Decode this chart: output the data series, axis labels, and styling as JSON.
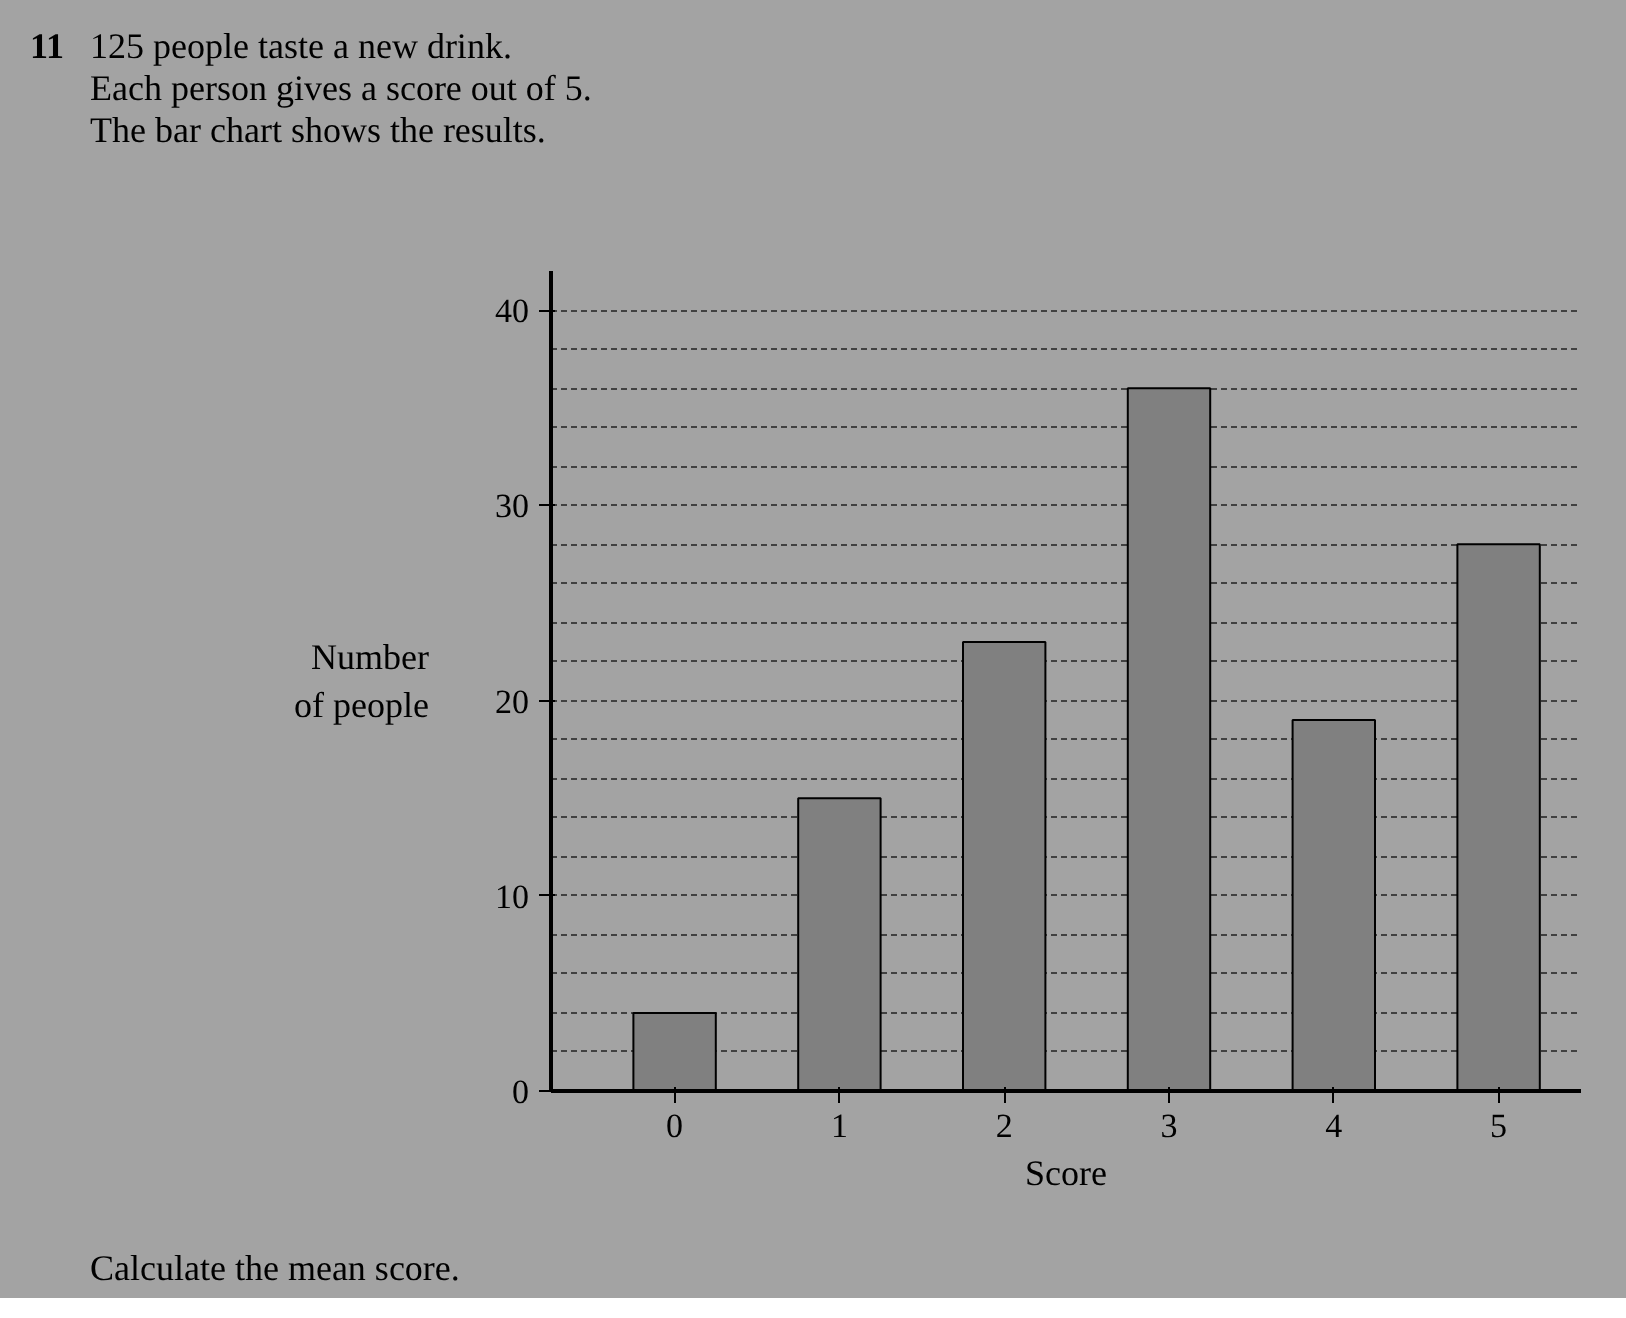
{
  "chart_data": {
    "type": "bar",
    "title": "125 people taste a new drink.",
    "subtitle": "Each person gives a score out of 5.\nThe bar chart shows the results.",
    "xlabel": "Score",
    "ylabel": "Number\nof people",
    "annotations": [
      "11",
      "Calculate the mean score."
    ],
    "categories": [
      "0",
      "1",
      "2",
      "3",
      "4",
      "5"
    ],
    "values": [
      4,
      15,
      23,
      36,
      19,
      28
    ],
    "color": "#808080",
    "ylim": [
      0,
      42
    ],
    "yticks": [
      0,
      {
        "value": 2,
        "label": null
      },
      {
        "value": 4,
        "label": null
      },
      {
        "value": 6,
        "label": null
      },
      {
        "value": 8,
        "label": null
      },
      10,
      {
        "value": 12,
        "label": null
      },
      {
        "value": 14,
        "label": null
      },
      {
        "value": 16,
        "label": null
      },
      {
        "value": 18,
        "label": null
      },
      20,
      {
        "value": 22,
        "label": null
      },
      {
        "value": 24,
        "label": null
      },
      {
        "value": 26,
        "label": null
      },
      {
        "value": 28,
        "label": null
      },
      30,
      {
        "value": 32,
        "label": null
      },
      {
        "value": 34,
        "label": null
      },
      {
        "value": 36,
        "label": null
      },
      {
        "value": 38,
        "label": null
      },
      40
    ],
    "grid": "y"
  }
}
